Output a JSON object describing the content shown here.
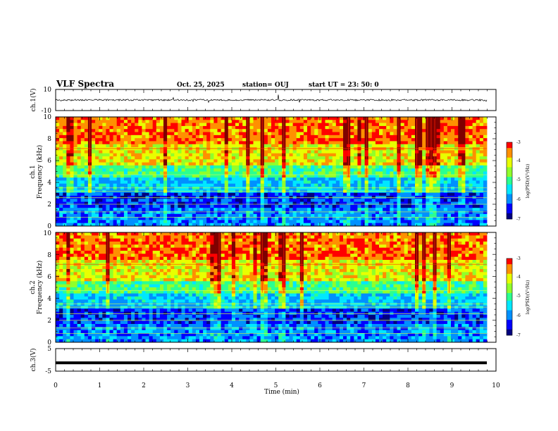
{
  "header": {
    "title": "VLF Spectra",
    "date": "Oct. 25, 2025",
    "station": "station= OUJ",
    "start": "start  UT  =   23: 50: 0"
  },
  "colors": {
    "trace": "#000000",
    "colormap": [
      "#00007f",
      "#0000ff",
      "#0090ff",
      "#00e8ff",
      "#2bff90",
      "#90ff2b",
      "#e8ff00",
      "#ff9000",
      "#ff0000",
      "#7f0000"
    ]
  },
  "chart_data": [
    {
      "type": "line",
      "name": "ch1-waveform",
      "ylabel": "ch.1(V)",
      "ylim": [
        -10,
        10
      ],
      "ytick_labels": [
        "10",
        "-10"
      ],
      "baseline": 0
    },
    {
      "type": "heatmap",
      "name": "ch1-spectrogram",
      "ylabel_top": "ch.1",
      "ylabel": "Frequency  (kHz)",
      "ylim": [
        0,
        10
      ],
      "ytick_labels": [
        "0",
        "2",
        "4",
        "6",
        "8",
        "10"
      ],
      "xlim": [
        0,
        9.8
      ],
      "colorbar": {
        "label": "log(PSD)(V²/Hz)",
        "range": [
          -7,
          -3
        ],
        "tick_labels": [
          "-3",
          "-4",
          "-5",
          "-6",
          "-7"
        ]
      }
    },
    {
      "type": "heatmap",
      "name": "ch2-spectrogram",
      "ylabel_top": "ch.2",
      "ylabel": "Frequency  (kHz)",
      "ylim": [
        0,
        10
      ],
      "ytick_labels": [
        "0",
        "2",
        "4",
        "6",
        "8",
        "10"
      ],
      "xlim": [
        0,
        9.8
      ],
      "colorbar": {
        "label": "log(PSD)(V²/Hz)",
        "range": [
          -7,
          -3
        ],
        "tick_labels": [
          "-3",
          "-4",
          "-5",
          "-6",
          "-7"
        ]
      }
    },
    {
      "type": "line",
      "name": "ch3-waveform",
      "ylabel": "ch.3(V)",
      "ylim": [
        -5,
        5
      ],
      "ytick_labels": [
        "5",
        "-5"
      ],
      "baseline": -1.3
    }
  ],
  "xaxis": {
    "label": "Time  (min)",
    "range": [
      0,
      10
    ],
    "tick_labels": [
      "0",
      "1",
      "2",
      "3",
      "4",
      "5",
      "6",
      "7",
      "8",
      "9",
      "10"
    ]
  }
}
